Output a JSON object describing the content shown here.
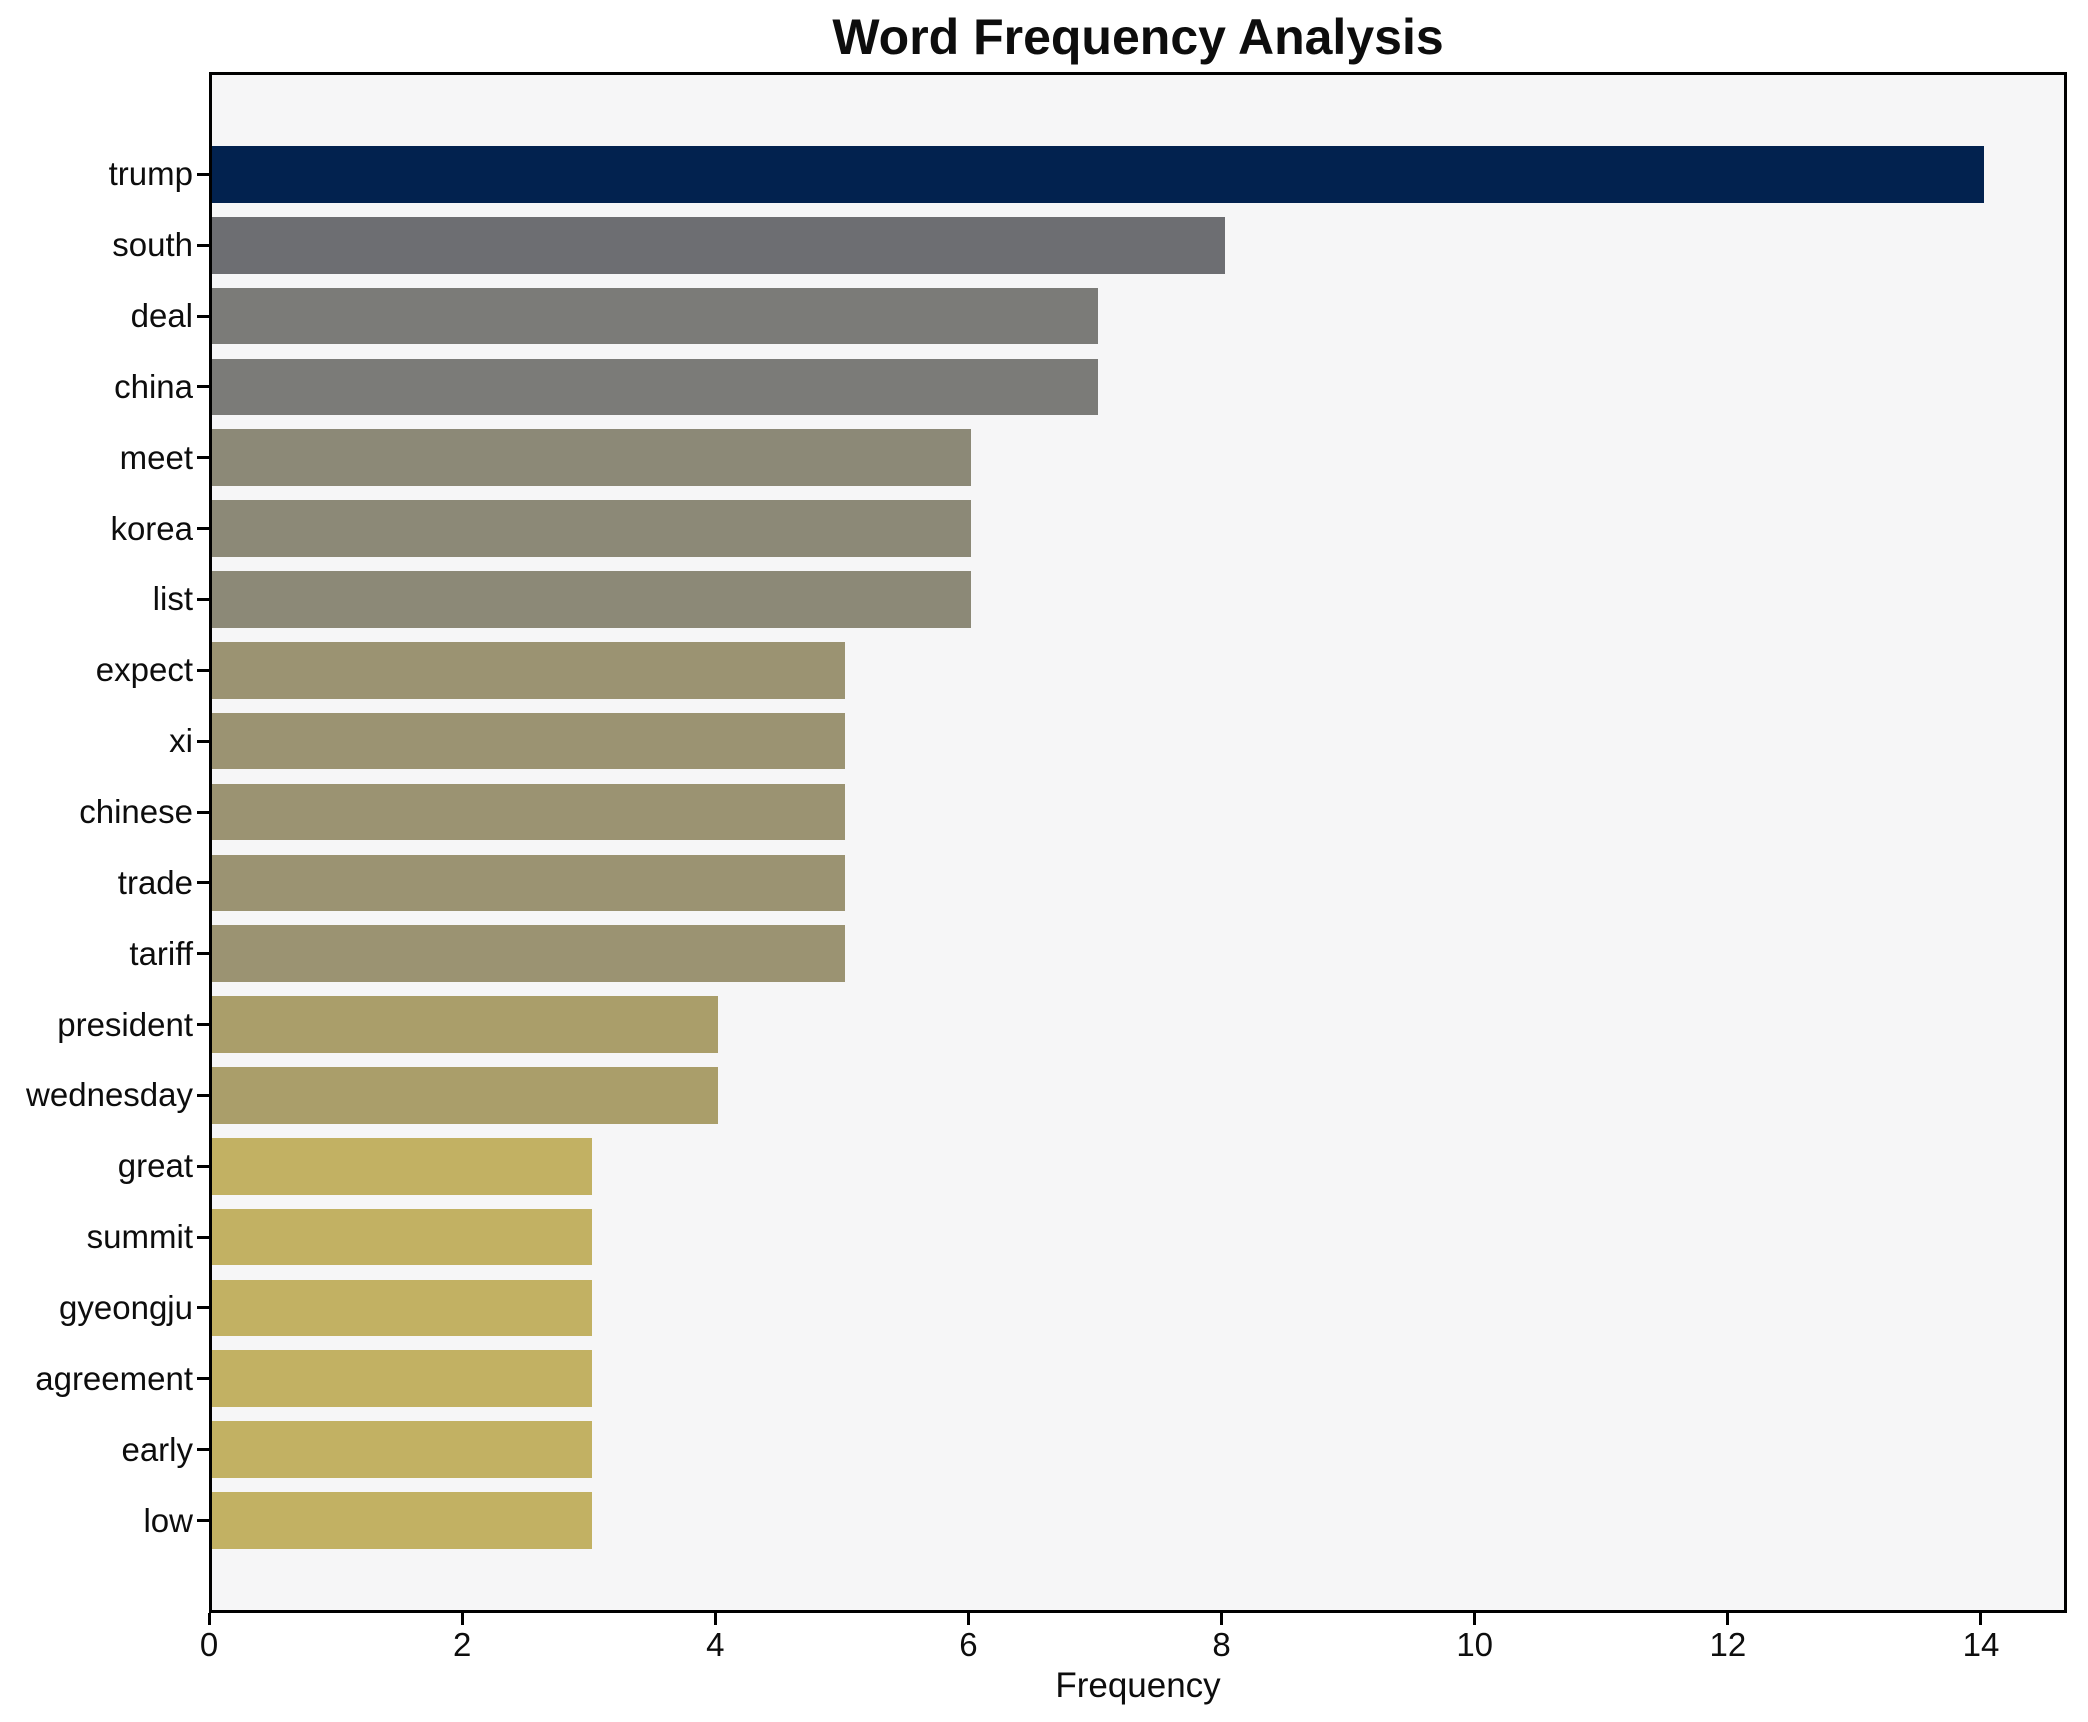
{
  "chart_data": {
    "type": "bar",
    "orientation": "horizontal",
    "title": "Word Frequency Analysis",
    "xlabel": "Frequency",
    "ylabel": "",
    "categories": [
      "trump",
      "south",
      "deal",
      "china",
      "meet",
      "korea",
      "list",
      "expect",
      "xi",
      "chinese",
      "trade",
      "tariff",
      "president",
      "wednesday",
      "great",
      "summit",
      "gyeongju",
      "agreement",
      "early",
      "low"
    ],
    "values": [
      14,
      8,
      7,
      7,
      6,
      6,
      6,
      5,
      5,
      5,
      5,
      5,
      4,
      4,
      3,
      3,
      3,
      3,
      3,
      3
    ],
    "bar_colors": [
      "#02224f",
      "#6d6e72",
      "#7b7b78",
      "#7b7b78",
      "#8c8977",
      "#8c8977",
      "#8c8977",
      "#9b9372",
      "#9b9372",
      "#9b9372",
      "#9b9372",
      "#9b9372",
      "#aa9e6a",
      "#aa9e6a",
      "#c2b163",
      "#c2b163",
      "#c2b163",
      "#c2b163",
      "#c2b163",
      "#c2b163"
    ],
    "xticks": [
      0,
      2,
      4,
      6,
      8,
      10,
      12,
      14
    ],
    "xlim": [
      0,
      14.7
    ],
    "grid": false,
    "legend": false,
    "colors": {
      "figure_bg": "#ffffff",
      "axes_bg": "#f6f6f7",
      "axis_line": "#000000",
      "text": "#0d0d0d"
    }
  }
}
